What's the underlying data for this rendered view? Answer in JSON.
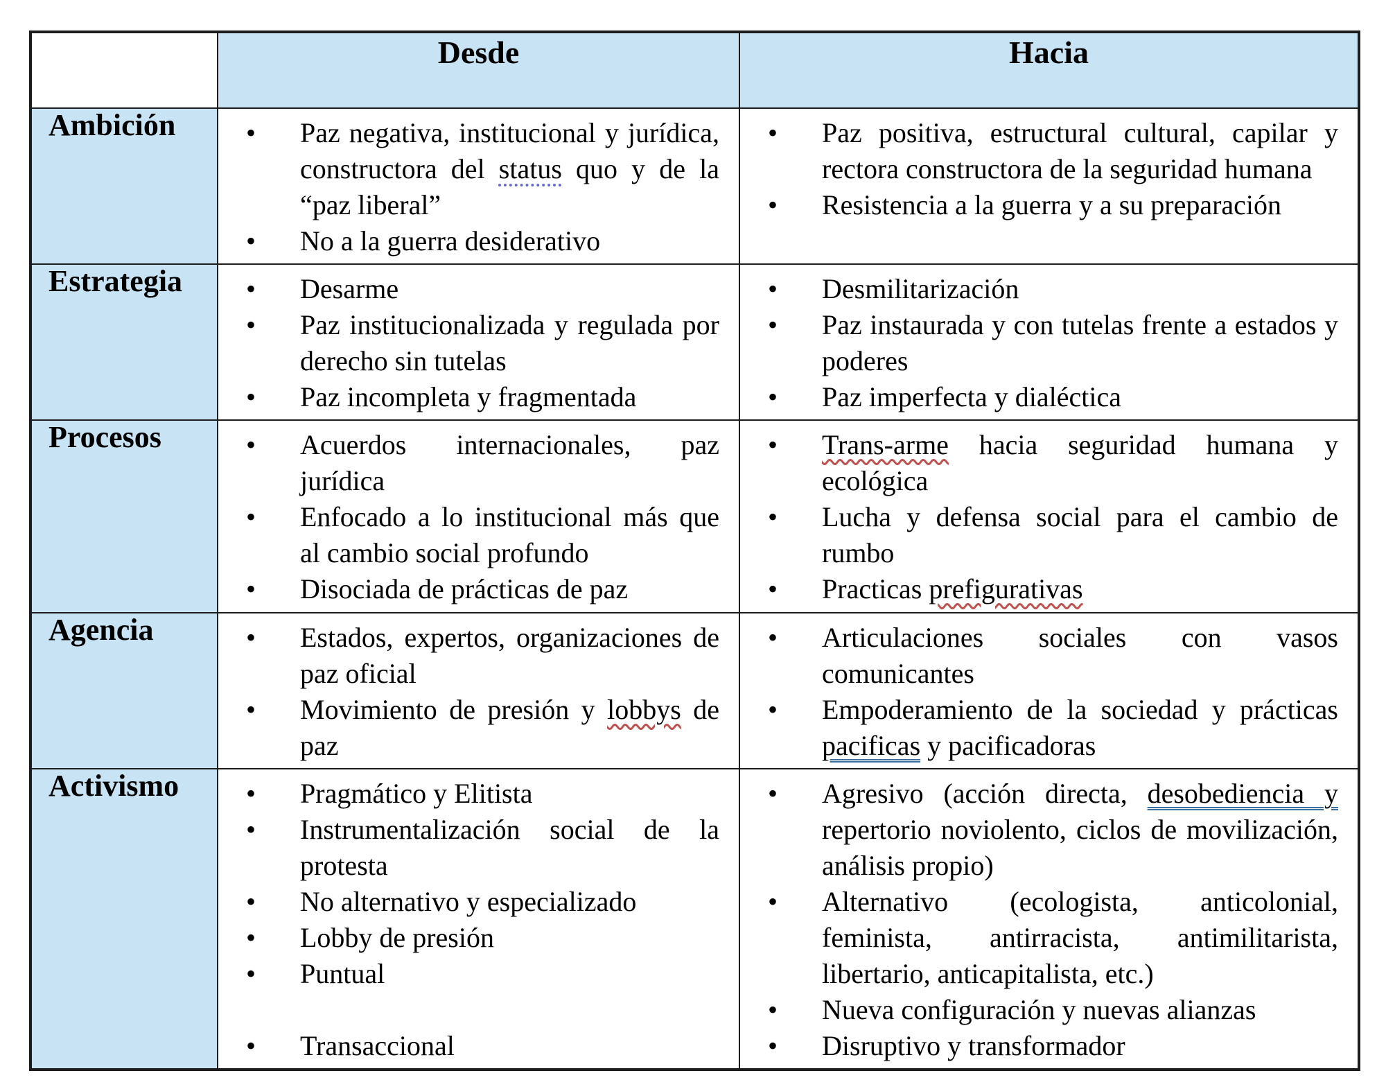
{
  "bullet_glyph": "•",
  "colors": {
    "header_bg": "#c8e4f4",
    "border": "#1c1c1c",
    "spellcheck_dotted_blue": "#6a6ad4",
    "spellcheck_wavy_red": "#c0504d",
    "grammar_double_blue": "#3d6f9e"
  },
  "header": {
    "corner": "",
    "desde": "Desde",
    "hacia": "Hacia"
  },
  "rows": [
    {
      "label": "Ambición",
      "desde": [
        {
          "segments": [
            {
              "text": "Paz negativa, institucional y jurídica, constructora del ",
              "mark": "none"
            },
            {
              "text": "status",
              "mark": "dotted-blue"
            },
            {
              "text": " quo y de la “paz liberal”",
              "mark": "none"
            }
          ]
        },
        {
          "segments": [
            {
              "text": "No a la guerra desiderativo",
              "mark": "none"
            }
          ]
        }
      ],
      "hacia": [
        {
          "segments": [
            {
              "text": "Paz positiva, estructural cultural, capilar y rectora constructora de la seguridad humana",
              "mark": "none"
            }
          ]
        },
        {
          "segments": [
            {
              "text": "Resistencia a la guerra y a su preparación",
              "mark": "none"
            }
          ]
        }
      ]
    },
    {
      "label": "Estrategia",
      "desde": [
        {
          "segments": [
            {
              "text": "Desarme",
              "mark": "none"
            }
          ]
        },
        {
          "segments": [
            {
              "text": "Paz institucionalizada y regulada por derecho sin tutelas",
              "mark": "none"
            }
          ]
        },
        {
          "segments": [
            {
              "text": "Paz incompleta y fragmentada",
              "mark": "none"
            }
          ]
        }
      ],
      "hacia": [
        {
          "segments": [
            {
              "text": "Desmilitarización",
              "mark": "none"
            }
          ]
        },
        {
          "segments": [
            {
              "text": "Paz instaurada y con tutelas frente a estados y poderes",
              "mark": "none"
            }
          ]
        },
        {
          "segments": [
            {
              "text": "Paz imperfecta y dialéctica",
              "mark": "none"
            }
          ]
        }
      ]
    },
    {
      "label": "Procesos",
      "desde": [
        {
          "segments": [
            {
              "text": "Acuerdos internacionales, paz jurídica",
              "mark": "none"
            }
          ]
        },
        {
          "segments": [
            {
              "text": "Enfocado a lo institucional más que al cambio social profundo",
              "mark": "none"
            }
          ]
        },
        {
          "segments": [
            {
              "text": "Disociada de prácticas de paz",
              "mark": "none"
            }
          ]
        }
      ],
      "hacia": [
        {
          "segments": [
            {
              "text": "Trans-arme",
              "mark": "wavy-red"
            },
            {
              "text": " hacia seguridad humana y ecológica",
              "mark": "none"
            }
          ]
        },
        {
          "segments": [
            {
              "text": "Lucha y defensa social para el cambio de rumbo",
              "mark": "none"
            }
          ]
        },
        {
          "segments": [
            {
              "text": "Practicas ",
              "mark": "none"
            },
            {
              "text": "prefigurativas",
              "mark": "wavy-red"
            }
          ]
        }
      ]
    },
    {
      "label": "Agencia",
      "desde": [
        {
          "segments": [
            {
              "text": "Estados, expertos, organizaciones de paz oficial",
              "mark": "none"
            }
          ]
        },
        {
          "segments": [
            {
              "text": "Movimiento de presión y ",
              "mark": "none"
            },
            {
              "text": "lobbys",
              "mark": "wavy-red"
            },
            {
              "text": " de paz",
              "mark": "none"
            }
          ]
        }
      ],
      "hacia": [
        {
          "segments": [
            {
              "text": "Articulaciones sociales con vasos comunicantes",
              "mark": "none"
            }
          ]
        },
        {
          "segments": [
            {
              "text": "Empoderamiento de la sociedad y prácticas ",
              "mark": "none"
            },
            {
              "text": "pacificas",
              "mark": "double-blue"
            },
            {
              "text": " y pacificadoras",
              "mark": "none"
            }
          ]
        }
      ]
    },
    {
      "label": "Activismo",
      "desde": [
        {
          "segments": [
            {
              "text": "Pragmático y Elitista",
              "mark": "none"
            }
          ]
        },
        {
          "segments": [
            {
              "text": "Instrumentalización social de la protesta",
              "mark": "none"
            }
          ]
        },
        {
          "segments": [
            {
              "text": "No alternativo y especializado",
              "mark": "none"
            }
          ]
        },
        {
          "segments": [
            {
              "text": "Lobby de presión",
              "mark": "none"
            }
          ]
        },
        {
          "segments": [
            {
              "text": "Puntual",
              "mark": "none"
            }
          ]
        },
        {
          "gap_before": true,
          "segments": [
            {
              "text": "Transaccional",
              "mark": "none"
            }
          ]
        }
      ],
      "hacia": [
        {
          "segments": [
            {
              "text": "Agresivo (acción directa, ",
              "mark": "none"
            },
            {
              "text": "desobediencia y",
              "mark": "double-blue"
            },
            {
              "text": " repertorio noviolento, ciclos de movilización, análisis propio)",
              "mark": "none"
            }
          ]
        },
        {
          "segments": [
            {
              "text": "Alternativo (ecologista, anticolonial, feminista, antirracista, antimilitarista, libertario, anticapitalista, etc.)",
              "mark": "none"
            }
          ]
        },
        {
          "segments": [
            {
              "text": "Nueva configuración y nuevas alianzas",
              "mark": "none"
            }
          ]
        },
        {
          "segments": [
            {
              "text": "Disruptivo y transformador",
              "mark": "none"
            }
          ]
        }
      ]
    }
  ]
}
